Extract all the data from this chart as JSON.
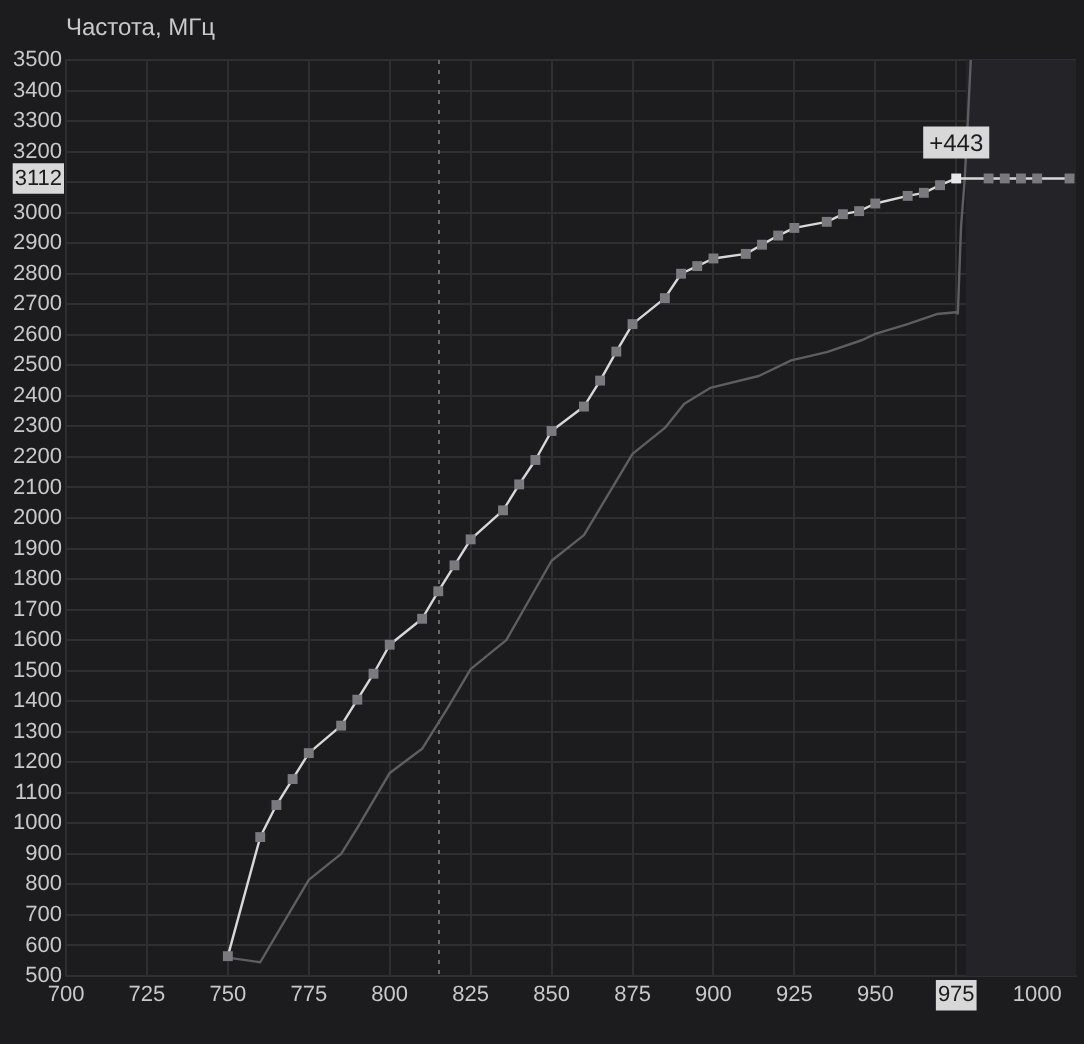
{
  "chart_data": {
    "type": "line",
    "ylabel": "Частота, МГц",
    "xlim": [
      700,
      1012
    ],
    "xticks": [
      700,
      725,
      750,
      775,
      800,
      825,
      850,
      875,
      900,
      925,
      950,
      975,
      1000
    ],
    "ylim": [
      500,
      3500
    ],
    "yticks": [
      500,
      600,
      700,
      800,
      900,
      1000,
      1100,
      1200,
      1300,
      1400,
      1500,
      1600,
      1700,
      1800,
      1900,
      2000,
      2100,
      2200,
      2300,
      2400,
      2500,
      2600,
      2700,
      2800,
      2900,
      3000,
      3112,
      {
        "value": 3100,
        "label": null
      },
      3200,
      3300,
      3400,
      3500
    ],
    "grid": true,
    "legend": false,
    "line_style": "solid",
    "series": [
      {
        "color": "#d8d8d8",
        "marker": "square",
        "x": [
          750,
          760,
          765,
          770,
          775,
          785,
          790,
          795,
          800,
          810,
          815,
          820,
          825,
          835,
          840,
          845,
          850,
          860,
          865,
          870,
          875,
          885,
          890,
          895,
          900,
          910,
          915,
          920,
          925,
          935,
          940,
          945,
          950,
          960,
          965,
          970,
          975,
          985,
          990,
          995,
          1000,
          1010
        ],
        "values": [
          565,
          955,
          1060,
          1145,
          1230,
          1320,
          1405,
          1490,
          1585,
          1670,
          1760,
          1845,
          1930,
          2025,
          2110,
          2190,
          2285,
          2365,
          2450,
          2545,
          2635,
          2720,
          2800,
          2825,
          2850,
          2865,
          2895,
          2925,
          2950,
          2970,
          2995,
          3005,
          3030,
          3055,
          3065,
          3090,
          3112,
          3112,
          3112,
          3112,
          3112,
          3112
        ]
      },
      {
        "color": "#5e5e62",
        "marker": "none",
        "x": [
          750,
          760,
          775,
          785,
          790,
          800,
          810,
          818,
          825,
          836,
          850,
          860,
          875,
          885,
          891,
          899,
          914,
          924,
          935,
          946,
          950,
          960,
          969,
          975,
          975.5,
          976.5,
          977.6,
          978.6,
          979.5
        ],
        "values": [
          560,
          545,
          815,
          900,
          985,
          1165,
          1244,
          1380,
          1505,
          1600,
          1860,
          1944,
          2210,
          2295,
          2374,
          2426,
          2465,
          2516,
          2543,
          2583,
          2603,
          2635,
          2668,
          2674,
          2670,
          2957,
          3107,
          3304,
          3500
        ]
      }
    ],
    "ref_lines": [
      {
        "axis": "x",
        "value": 815,
        "color": "#6a6a6e",
        "line_style": "dotted"
      }
    ],
    "bands": [
      {
        "axis": "x",
        "from": 978,
        "to": 1012,
        "color": "#232328"
      }
    ],
    "annotations": [
      {
        "text": "+443",
        "x": 975,
        "y": 3112
      }
    ]
  }
}
